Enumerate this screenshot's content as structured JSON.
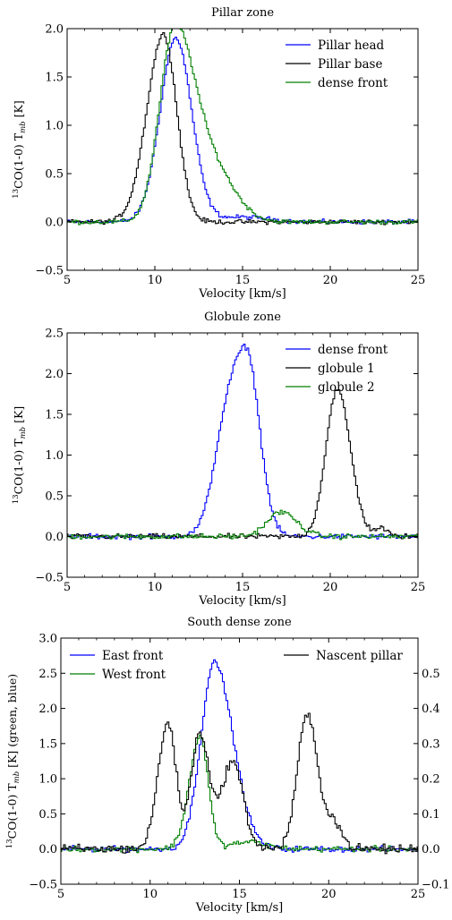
{
  "chart_data": [
    {
      "type": "line",
      "title": "Pillar zone",
      "xlabel": "Velocity [km/s]",
      "ylabel": "13CO(1-0) T_mb [K]",
      "xlim": [
        5,
        25
      ],
      "ylim": [
        -0.5,
        2.0
      ],
      "xticks": [
        5,
        10,
        15,
        20,
        25
      ],
      "yticks": [
        -0.5,
        0.0,
        0.5,
        1.0,
        1.5,
        2.0
      ],
      "yticklabels": [
        "−0.5",
        "0.0",
        "0.5",
        "1.0",
        "1.5",
        "2.0"
      ],
      "legend_position": "top-right",
      "series": [
        {
          "name": "Pillar head",
          "color": "#0000ff",
          "kind": "gauss",
          "amp": 1.9,
          "center": 11.2,
          "sigma_left": 0.9,
          "sigma_right": 0.9,
          "baseline": 0.0,
          "extra": [
            {
              "amp": 0.05,
              "center": 15.0,
              "sigma": 1.5
            }
          ]
        },
        {
          "name": "Pillar base",
          "color": "#000000",
          "kind": "gauss",
          "amp": 1.94,
          "center": 10.5,
          "sigma_left": 0.95,
          "sigma_right": 0.75,
          "baseline": 0.0,
          "extra": []
        },
        {
          "name": "dense front",
          "color": "#008000",
          "kind": "gauss",
          "amp": 1.88,
          "center": 11.1,
          "sigma_left": 0.85,
          "sigma_right": 1.1,
          "baseline": 0.0,
          "extra": [
            {
              "amp": 0.55,
              "center": 13.2,
              "sigma": 1.3
            }
          ]
        }
      ]
    },
    {
      "type": "line",
      "title": "Globule zone",
      "xlabel": "Velocity [km/s]",
      "ylabel": "13CO(1-0) T_mb [K]",
      "xlim": [
        5,
        25
      ],
      "ylim": [
        -0.5,
        2.5
      ],
      "xticks": [
        5,
        10,
        15,
        20,
        25
      ],
      "yticks": [
        -0.5,
        0.0,
        0.5,
        1.0,
        1.5,
        2.0,
        2.5
      ],
      "yticklabels": [
        "−0.5",
        "0.0",
        "0.5",
        "1.0",
        "1.5",
        "2.0",
        "2.5"
      ],
      "legend_position": "top-right",
      "series": [
        {
          "name": "dense front",
          "color": "#0000ff",
          "kind": "gauss",
          "amp": 2.3,
          "center": 15.2,
          "sigma_left": 1.1,
          "sigma_right": 0.75,
          "baseline": 0.0,
          "extra": [
            {
              "amp": 0.4,
              "center": 13.8,
              "sigma": 0.6
            }
          ]
        },
        {
          "name": "globule 1",
          "color": "#000000",
          "kind": "gauss",
          "amp": 1.8,
          "center": 20.4,
          "sigma_left": 0.65,
          "sigma_right": 0.75,
          "baseline": 0.0,
          "extra": [
            {
              "amp": 0.1,
              "center": 22.9,
              "sigma": 0.35
            }
          ]
        },
        {
          "name": "globule 2",
          "color": "#008000",
          "kind": "gauss",
          "amp": 0.3,
          "center": 17.2,
          "sigma_left": 0.8,
          "sigma_right": 0.9,
          "baseline": 0.0,
          "extra": []
        }
      ]
    },
    {
      "type": "line",
      "title": "South dense zone",
      "xlabel": "Velocity [km/s]",
      "ylabel": "13CO(1-0) T_mb [K] (green, blue)",
      "xlim": [
        5,
        25
      ],
      "ylim": [
        -0.5,
        3.0
      ],
      "y2lim": [
        -0.1,
        0.6
      ],
      "xticks": [
        5,
        10,
        15,
        20,
        25
      ],
      "yticks": [
        -0.5,
        0.0,
        0.5,
        1.0,
        1.5,
        2.0,
        2.5,
        3.0
      ],
      "yticklabels": [
        "−0.5",
        "0.0",
        "0.5",
        "1.0",
        "1.5",
        "2.0",
        "2.5",
        "3.0"
      ],
      "y2ticks": [
        -0.1,
        0.0,
        0.1,
        0.2,
        0.3,
        0.4,
        0.5
      ],
      "y2ticklabels": [
        "−0.1",
        "0.0",
        "0.1",
        "0.2",
        "0.3",
        "0.4",
        "0.5"
      ],
      "legend_position": "top",
      "series": [
        {
          "name": "East front",
          "color": "#0000ff",
          "kind": "gauss",
          "axis": "left",
          "amp": 2.65,
          "center": 13.6,
          "sigma_left": 0.75,
          "sigma_right": 1.05,
          "baseline": 0.0,
          "extra": []
        },
        {
          "name": "West front",
          "color": "#008000",
          "kind": "gauss",
          "axis": "left",
          "amp": 1.6,
          "center": 12.8,
          "sigma_left": 0.6,
          "sigma_right": 0.45,
          "baseline": 0.0,
          "extra": [
            {
              "amp": 0.1,
              "center": 15.5,
              "sigma": 1.0
            }
          ]
        },
        {
          "name": "Nascent pillar",
          "color": "#000000",
          "kind": "gauss",
          "axis": "right",
          "amp": 0.36,
          "center": 11.0,
          "sigma_left": 0.55,
          "sigma_right": 0.45,
          "baseline": 0.0,
          "extra": [
            {
              "amp": 0.33,
              "center": 12.8,
              "sigma": 0.5
            },
            {
              "amp": 0.25,
              "center": 14.6,
              "sigma": 0.6
            },
            {
              "amp": 0.38,
              "center": 18.8,
              "sigma": 0.55
            },
            {
              "amp": 0.08,
              "center": 20.2,
              "sigma": 0.5
            }
          ]
        }
      ]
    }
  ]
}
